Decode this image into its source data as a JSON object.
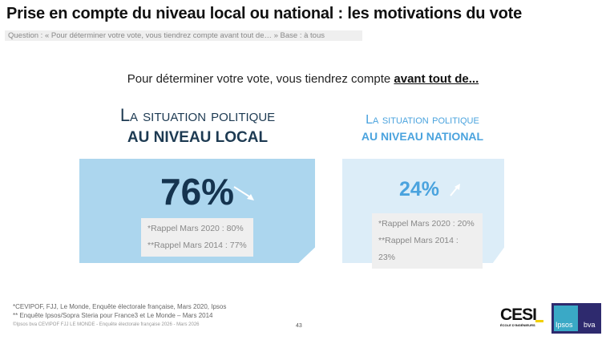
{
  "title": "Prise en compte du niveau local ou national : les motivations du vote",
  "question": "Question : « Pour déterminer votre vote, vous tiendrez compte avant tout de… » Base : à tous",
  "lead": {
    "text": "Pour déterminer votre vote, vous tiendrez compte ",
    "emphasis": "avant tout de..."
  },
  "cards": [
    {
      "line1": "La situation politique",
      "line2": "AU NIVEAU LOCAL",
      "value": "76%",
      "trend": "down",
      "recall_2020": "*Rappel Mars 2020 : 80%",
      "recall_2014": "**Rappel Mars 2014 : 77%",
      "color": "#acd6ee"
    },
    {
      "line1": "La situation politique",
      "line2": "AU NIVEAU NATIONAL",
      "value": "24%",
      "trend": "up",
      "recall_2020": "*Rappel Mars 2020 : 20%",
      "recall_2014": "**Rappel Mars 2014 : 23%",
      "color": "#dcedf8"
    }
  ],
  "footer": {
    "note1": "*CEVIPOF, FJJ, Le Monde, Enquête électorale française, Mars 2020, Ipsos",
    "note2": "** Enquête Ipsos/Sopra Steria pour France3 et Le Monde – Mars 2014",
    "copyright": "©Ipsos bva CEVIPOF FJJ LE MONDE - Enquête électorale française 2026 - Mars 2026",
    "page": "43"
  },
  "logos": {
    "cesi": "CESI",
    "cesi_sub": "ÉCOLE D'INGÉNIEURS",
    "ipsos": "Ipsos",
    "bva": "bva"
  }
}
